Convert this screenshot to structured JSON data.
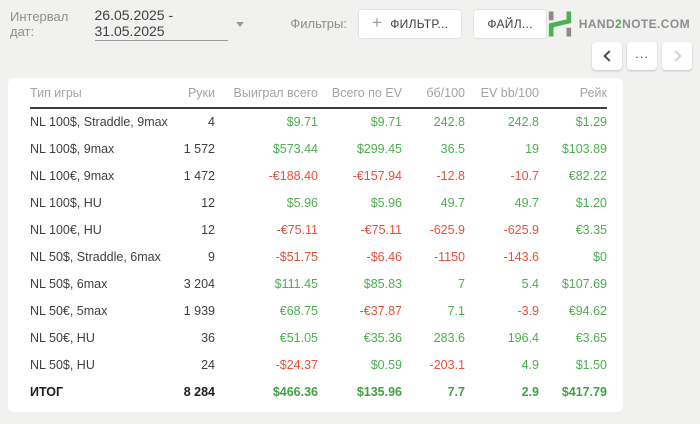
{
  "toolbar": {
    "date_label": "Интервал дат:",
    "date_range": "26.05.2025 - 31.05.2025",
    "filters_label": "Фильтры:",
    "filter_button_label": "ФИЛЬТР...",
    "filter_button_plus": "+",
    "file_button_label": "ФАЙЛ..."
  },
  "brand": {
    "pre": "HAND",
    "two": "2",
    "post": "NOTE.COM"
  },
  "pager": {
    "more_label": "..."
  },
  "colors": {
    "positive": "#4caf50",
    "negative": "#e8503a",
    "brand_green": "#4caf50",
    "brand_gray": "#8a8a8a",
    "background": "#f1f1f0",
    "card": "#ffffff"
  },
  "table": {
    "columns": [
      "Тип игры",
      "Руки",
      "Выиграл всего",
      "Всего по EV",
      "бб/100",
      "EV bb/100",
      "Рейк"
    ],
    "rows": [
      {
        "type": "NL 100$, Straddle, 9max",
        "hands": "4",
        "values": [
          {
            "v": "$9.71",
            "s": "pos"
          },
          {
            "v": "$9.71",
            "s": "pos"
          },
          {
            "v": "242.8",
            "s": "pos"
          },
          {
            "v": "242.8",
            "s": "pos"
          },
          {
            "v": "$1.29",
            "s": "pos"
          }
        ]
      },
      {
        "type": "NL 100$, 9max",
        "hands": "1 572",
        "values": [
          {
            "v": "$573.44",
            "s": "pos"
          },
          {
            "v": "$299.45",
            "s": "pos"
          },
          {
            "v": "36.5",
            "s": "pos"
          },
          {
            "v": "19",
            "s": "pos"
          },
          {
            "v": "$103.89",
            "s": "pos"
          }
        ]
      },
      {
        "type": "NL 100€, 9max",
        "hands": "1 472",
        "values": [
          {
            "v": "-€188.40",
            "s": "neg"
          },
          {
            "v": "-€157.94",
            "s": "neg"
          },
          {
            "v": "-12.8",
            "s": "neg"
          },
          {
            "v": "-10.7",
            "s": "neg"
          },
          {
            "v": "€82.22",
            "s": "pos"
          }
        ]
      },
      {
        "type": "NL 100$, HU",
        "hands": "12",
        "values": [
          {
            "v": "$5.96",
            "s": "pos"
          },
          {
            "v": "$5.96",
            "s": "pos"
          },
          {
            "v": "49.7",
            "s": "pos"
          },
          {
            "v": "49.7",
            "s": "pos"
          },
          {
            "v": "$1.20",
            "s": "pos"
          }
        ]
      },
      {
        "type": "NL 100€, HU",
        "hands": "12",
        "values": [
          {
            "v": "-€75.11",
            "s": "neg"
          },
          {
            "v": "-€75.11",
            "s": "neg"
          },
          {
            "v": "-625.9",
            "s": "neg"
          },
          {
            "v": "-625.9",
            "s": "neg"
          },
          {
            "v": "€3.35",
            "s": "pos"
          }
        ]
      },
      {
        "type": "NL 50$, Straddle, 6max",
        "hands": "9",
        "values": [
          {
            "v": "-$51.75",
            "s": "neg"
          },
          {
            "v": "-$6.46",
            "s": "neg"
          },
          {
            "v": "-1150",
            "s": "neg"
          },
          {
            "v": "-143.6",
            "s": "neg"
          },
          {
            "v": "$0",
            "s": "pos"
          }
        ]
      },
      {
        "type": "NL 50$, 6max",
        "hands": "3 204",
        "values": [
          {
            "v": "$111.45",
            "s": "pos"
          },
          {
            "v": "$85.83",
            "s": "pos"
          },
          {
            "v": "7",
            "s": "pos"
          },
          {
            "v": "5.4",
            "s": "pos"
          },
          {
            "v": "$107.69",
            "s": "pos"
          }
        ]
      },
      {
        "type": "NL 50€, 5max",
        "hands": "1 939",
        "values": [
          {
            "v": "€68.75",
            "s": "pos"
          },
          {
            "v": "-€37.87",
            "s": "neg"
          },
          {
            "v": "7.1",
            "s": "pos"
          },
          {
            "v": "-3.9",
            "s": "neg"
          },
          {
            "v": "€94.62",
            "s": "pos"
          }
        ]
      },
      {
        "type": "NL 50€, HU",
        "hands": "36",
        "values": [
          {
            "v": "€51.05",
            "s": "pos"
          },
          {
            "v": "€35.36",
            "s": "pos"
          },
          {
            "v": "283.6",
            "s": "pos"
          },
          {
            "v": "196.4",
            "s": "pos"
          },
          {
            "v": "€3.65",
            "s": "pos"
          }
        ]
      },
      {
        "type": "NL 50$, HU",
        "hands": "24",
        "values": [
          {
            "v": "-$24.37",
            "s": "neg"
          },
          {
            "v": "$0.59",
            "s": "pos"
          },
          {
            "v": "-203.1",
            "s": "neg"
          },
          {
            "v": "4.9",
            "s": "pos"
          },
          {
            "v": "$1.50",
            "s": "pos"
          }
        ]
      }
    ],
    "total": {
      "type": "ИТОГ",
      "hands": "8 284",
      "values": [
        {
          "v": "$466.36",
          "s": "pos"
        },
        {
          "v": "$135.96",
          "s": "pos"
        },
        {
          "v": "7.7",
          "s": "pos"
        },
        {
          "v": "2.9",
          "s": "pos"
        },
        {
          "v": "$417.79",
          "s": "pos"
        }
      ]
    }
  }
}
